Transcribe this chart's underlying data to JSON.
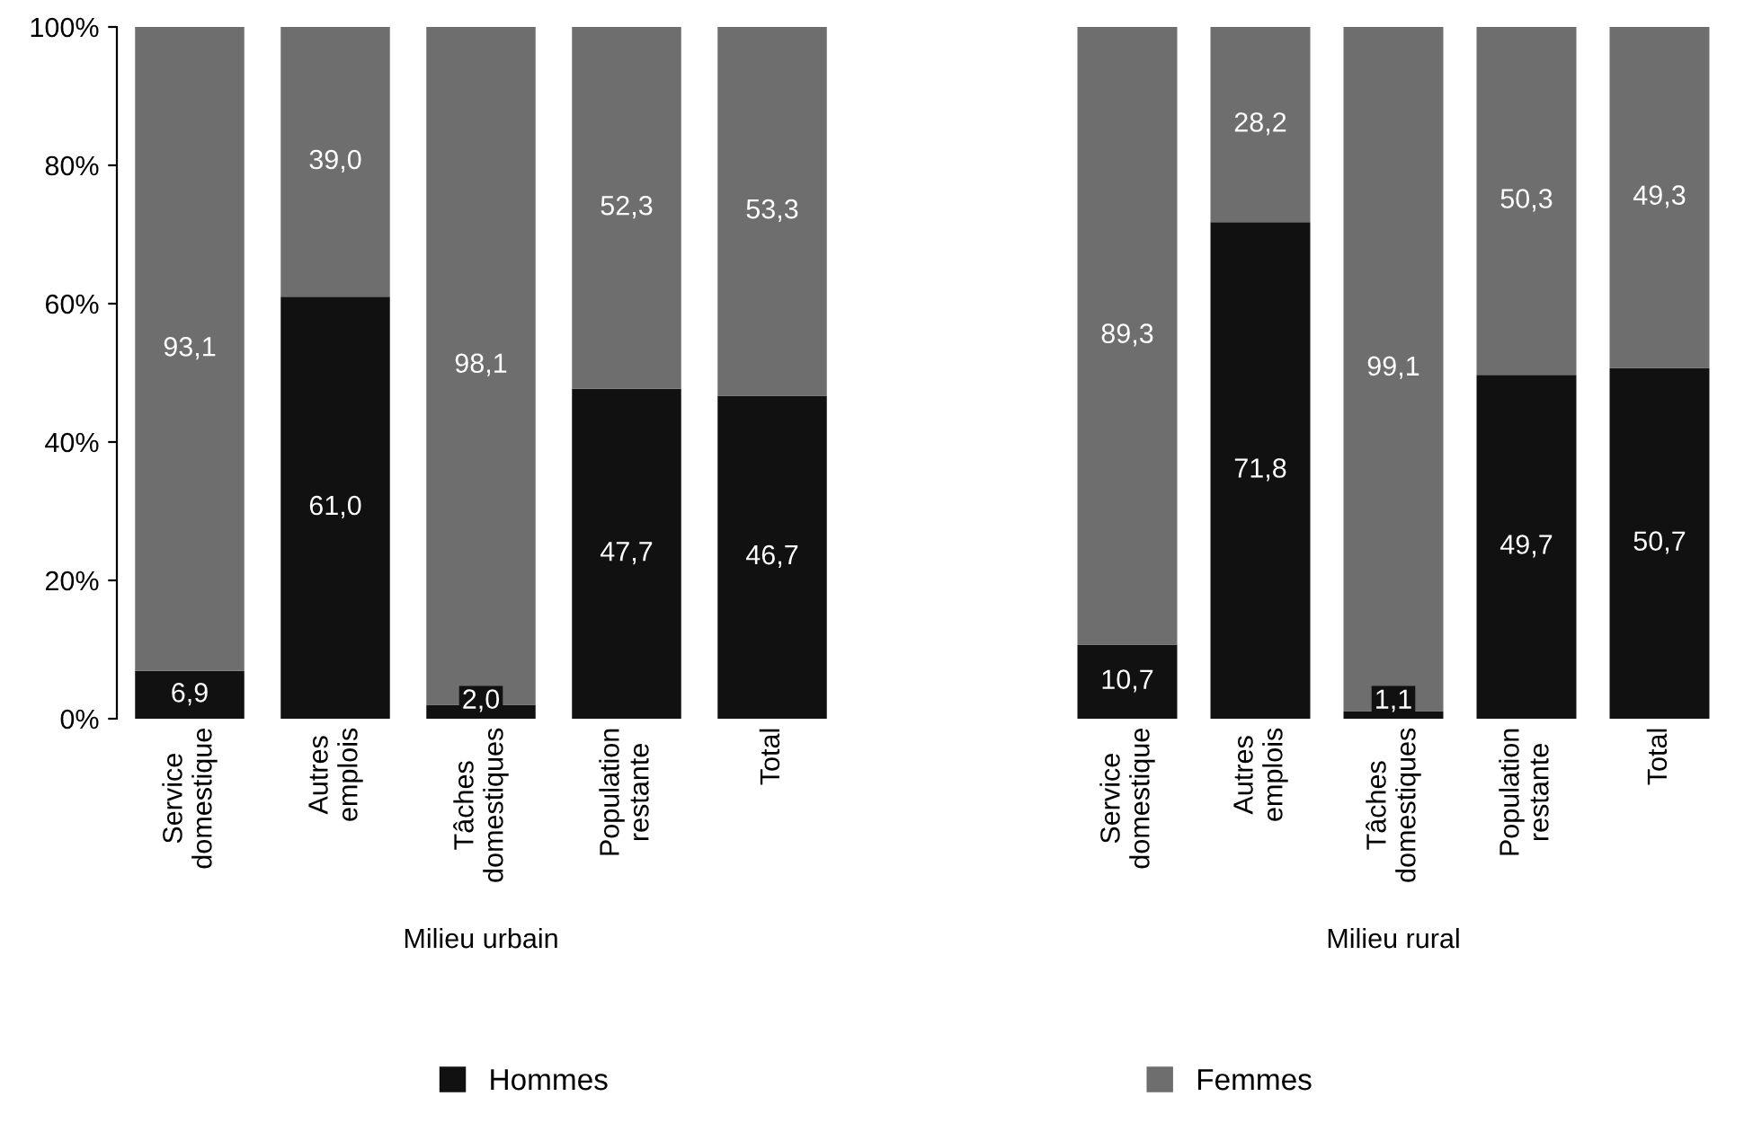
{
  "chart_data": [
    {
      "type": "bar",
      "stacked": true,
      "xlabel": "Milieu urbain",
      "categories": [
        "Service\ndomestique",
        "Autres\nemplois",
        "Tâches\ndomestiques",
        "Population\nrestante",
        "Total"
      ],
      "ylim": [
        0,
        100
      ],
      "yticks": [
        {
          "value": 0,
          "label": "0%"
        },
        {
          "value": 20,
          "label": "20%"
        },
        {
          "value": 40,
          "label": "40%"
        },
        {
          "value": 60,
          "label": "60%"
        },
        {
          "value": 80,
          "label": "80%"
        },
        {
          "value": 100,
          "label": "100%"
        }
      ],
      "legend": "bottom",
      "series": [
        {
          "name": "Hommes",
          "color": "#111111",
          "values": [
            6.9,
            61.0,
            2.0,
            47.7,
            46.7
          ],
          "value_labels": [
            "6,9",
            "61,0",
            "2,0",
            "47,7",
            "46,7"
          ]
        },
        {
          "name": "Femmes",
          "color": "#6e6e6e",
          "values": [
            93.1,
            39.0,
            98.1,
            52.3,
            53.3
          ],
          "value_labels": [
            "93,1",
            "39,0",
            "98,1",
            "52,3",
            "53,3"
          ]
        }
      ]
    },
    {
      "type": "bar",
      "stacked": true,
      "xlabel": "Milieu rural",
      "categories": [
        "Service\ndomestique",
        "Autres\nemplois",
        "Tâches\ndomestiques",
        "Population\nrestante",
        "Total"
      ],
      "ylim": [
        0,
        100
      ],
      "tick_labels": "x",
      "series": [
        {
          "name": "Hommes",
          "color": "#111111",
          "values": [
            10.7,
            71.8,
            1.1,
            49.7,
            50.7
          ],
          "value_labels": [
            "10,7",
            "71,8",
            "1,1",
            "49,7",
            "50,7"
          ]
        },
        {
          "name": "Femmes",
          "color": "#6e6e6e",
          "values": [
            89.3,
            28.2,
            99.1,
            50.3,
            49.3
          ],
          "value_labels": [
            "89,3",
            "28,2",
            "99,1",
            "50,3",
            "49,3"
          ]
        }
      ]
    }
  ]
}
